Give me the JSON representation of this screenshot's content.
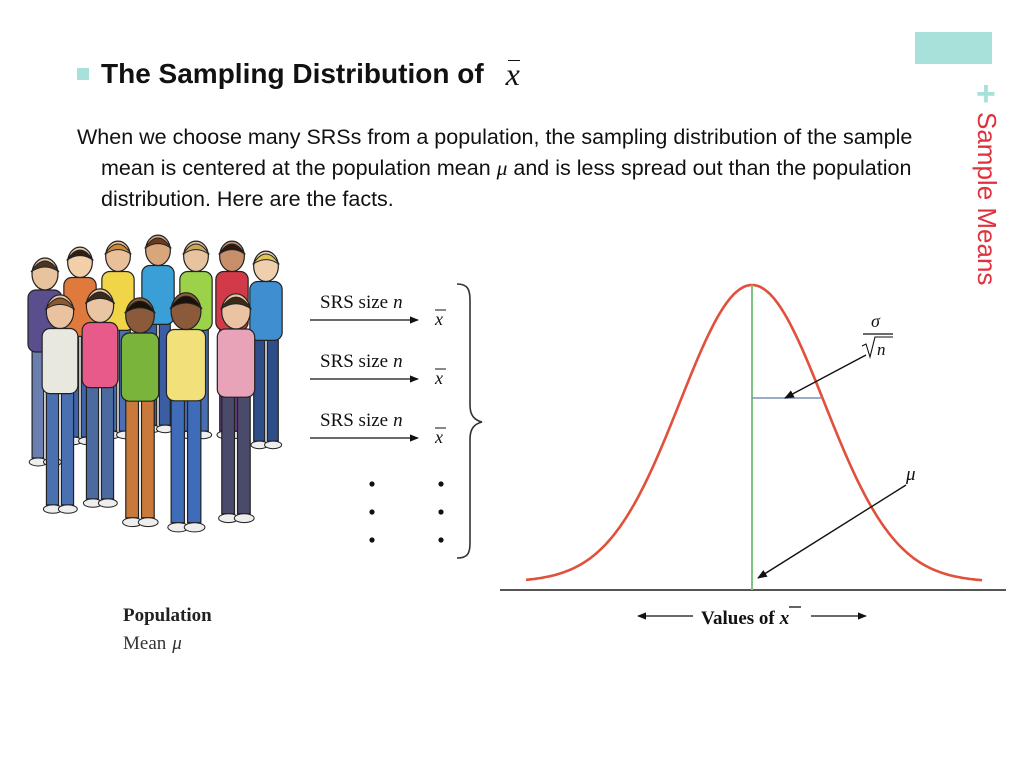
{
  "slide": {
    "title": "The Sampling Distribution of",
    "title_symbol": "x",
    "side_title": "Sample Means",
    "body_parts": [
      "When we choose many SRSs from a population, the sampling distribution of the sample mean is centered at the population mean ",
      "μ",
      " and is less spread out than the population distribution. Here are the facts."
    ]
  },
  "diagram": {
    "srs_rows": [
      {
        "label": "SRS size",
        "n": "n",
        "symbol": "x"
      },
      {
        "label": "SRS size",
        "n": "n",
        "symbol": "x"
      },
      {
        "label": "SRS size",
        "n": "n",
        "symbol": "x"
      }
    ],
    "population_label": "Population",
    "population_mean_label": "Mean",
    "population_mean_symbol": "μ",
    "axis_label": "Values of",
    "axis_symbol": "x",
    "sigma_label": "σ",
    "sqrt_n_label": "n",
    "mu_label": "μ"
  },
  "colors": {
    "accent": "#a8e1da",
    "side_title": "#e0323e",
    "curve": "#e0503a",
    "center_line": "#7dc47d",
    "spread_line": "#7c8fb4"
  }
}
